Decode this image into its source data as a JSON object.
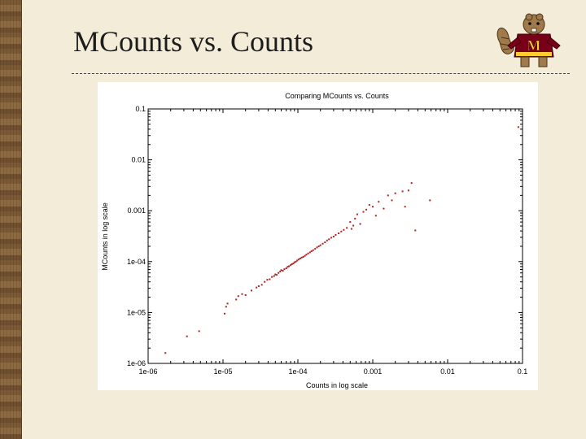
{
  "slide": {
    "title": "MCounts vs. Counts"
  },
  "icons": {
    "mascot": "goldy-gopher-mascot-icon",
    "mascot_letter": "M"
  },
  "colors": {
    "background": "#f3ecd8",
    "points": "#b22222",
    "maroon": "#7a0019",
    "gold": "#ffcc33"
  },
  "chart_data": {
    "type": "scatter",
    "title": "Comparing MCounts vs. Counts",
    "xlabel": "Counts in log scale",
    "ylabel": "MCounts in log scale",
    "xscale": "log",
    "yscale": "log",
    "xlim": [
      1e-06,
      0.1
    ],
    "ylim": [
      1e-06,
      0.1
    ],
    "xticks": [
      "1e-06",
      "1e-05",
      "1e-04",
      "0.001",
      "0.01",
      "0.1"
    ],
    "yticks": [
      "1e-06",
      "1e-05",
      "1e-04",
      "0.001",
      "0.01",
      "0.1"
    ],
    "grid": false,
    "legend": "none",
    "points": [
      [
        1.7e-06,
        1.6e-06
      ],
      [
        3.3e-06,
        3.4e-06
      ],
      [
        4.8e-06,
        4.3e-06
      ],
      [
        1.05e-05,
        9.5e-06
      ],
      [
        1.1e-05,
        1.3e-05
      ],
      [
        1.15e-05,
        1.5e-05
      ],
      [
        1.5e-05,
        1.8e-05
      ],
      [
        1.6e-05,
        2.1e-05
      ],
      [
        1.8e-05,
        2.3e-05
      ],
      [
        2e-05,
        2.2e-05
      ],
      [
        2.4e-05,
        2.7e-05
      ],
      [
        2.8e-05,
        3.1e-05
      ],
      [
        3e-05,
        3.3e-05
      ],
      [
        3.3e-05,
        3.5e-05
      ],
      [
        3.6e-05,
        4e-05
      ],
      [
        3.9e-05,
        4.4e-05
      ],
      [
        4.2e-05,
        4.5e-05
      ],
      [
        4.5e-05,
        5e-05
      ],
      [
        4.8e-05,
        5.2e-05
      ],
      [
        5e-05,
        5.6e-05
      ],
      [
        5.2e-05,
        5.5e-05
      ],
      [
        5.5e-05,
        6e-05
      ],
      [
        5.8e-05,
        6.4e-05
      ],
      [
        6e-05,
        6.8e-05
      ],
      [
        6.3e-05,
        6.6e-05
      ],
      [
        6.6e-05,
        7.1e-05
      ],
      [
        7e-05,
        7.4e-05
      ],
      [
        7.3e-05,
        7.9e-05
      ],
      [
        7.6e-05,
        8.1e-05
      ],
      [
        8e-05,
        8.5e-05
      ],
      [
        8.3e-05,
        8.9e-05
      ],
      [
        8.7e-05,
        9.2e-05
      ],
      [
        9e-05,
        9.7e-05
      ],
      [
        9.4e-05,
        0.0001
      ],
      [
        9.8e-05,
        0.000105
      ],
      [
        0.000102,
        0.00011
      ],
      [
        0.000107,
        0.000115
      ],
      [
        0.000112,
        0.00012
      ],
      [
        0.000118,
        0.000124
      ],
      [
        0.000124,
        0.00013
      ],
      [
        0.00013,
        0.000137
      ],
      [
        0.000137,
        0.000145
      ],
      [
        0.000145,
        0.000152
      ],
      [
        0.000152,
        0.00016
      ],
      [
        0.00016,
        0.000168
      ],
      [
        0.00017,
        0.000178
      ],
      [
        0.00018,
        0.00019
      ],
      [
        0.00019,
        0.0002
      ],
      [
        0.0002,
        0.00021
      ],
      [
        0.000215,
        0.000225
      ],
      [
        0.00023,
        0.00024
      ],
      [
        0.000245,
        0.00026
      ],
      [
        0.00026,
        0.000275
      ],
      [
        0.00028,
        0.000295
      ],
      [
        0.0003,
        0.00031
      ],
      [
        0.00032,
        0.000335
      ],
      [
        0.00035,
        0.00036
      ],
      [
        0.00038,
        0.00039
      ],
      [
        0.00041,
        0.00042
      ],
      [
        0.00045,
        0.00046
      ],
      [
        0.0005,
        0.0006
      ],
      [
        0.00052,
        0.00044
      ],
      [
        0.00055,
        0.00051
      ],
      [
        0.00058,
        0.0007
      ],
      [
        0.00062,
        0.00085
      ],
      [
        0.00068,
        0.00055
      ],
      [
        0.00075,
        0.00095
      ],
      [
        0.00082,
        0.00105
      ],
      [
        0.0009,
        0.0013
      ],
      [
        0.001,
        0.0012
      ],
      [
        0.0011,
        0.0008
      ],
      [
        0.0012,
        0.0015
      ],
      [
        0.0014,
        0.0011
      ],
      [
        0.0016,
        0.002
      ],
      [
        0.0018,
        0.0016
      ],
      [
        0.002,
        0.0022
      ],
      [
        0.0025,
        0.0024
      ],
      [
        0.0027,
        0.0012
      ],
      [
        0.003,
        0.0025
      ],
      [
        0.0033,
        0.0035
      ],
      [
        0.0037,
        0.00041
      ],
      [
        0.0058,
        0.0016
      ],
      [
        0.088,
        0.044
      ]
    ]
  }
}
